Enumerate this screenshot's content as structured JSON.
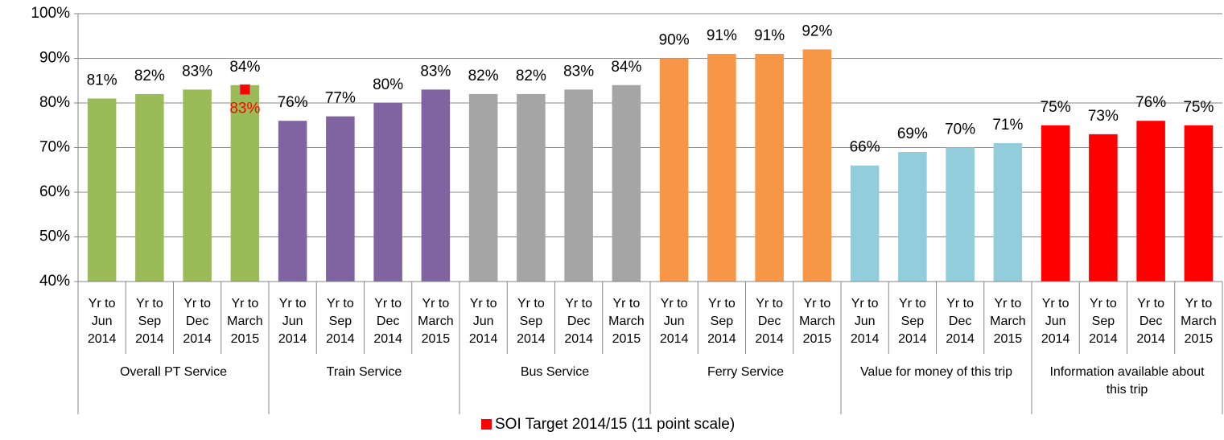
{
  "chart_data": {
    "type": "bar",
    "categories": [
      "Yr to Jun 2014",
      "Yr to Sep 2014",
      "Yr to Dec 2014",
      "Yr to March 2015",
      "Yr to Jun 2014",
      "Yr to Sep 2014",
      "Yr to Dec 2014",
      "Yr to March 2015",
      "Yr to Jun 2014",
      "Yr to Sep 2014",
      "Yr to Dec 2014",
      "Yr to March 2015",
      "Yr to Jun 2014",
      "Yr to Sep 2014",
      "Yr to Dec 2014",
      "Yr to March 2015",
      "Yr to Jun 2014",
      "Yr to Sep 2014",
      "Yr to Dec 2014",
      "Yr to March 2015",
      "Yr to Jun 2014",
      "Yr to Sep 2014",
      "Yr to Dec 2014",
      "Yr to March 2015"
    ],
    "groups": [
      {
        "label": "Overall PT Service",
        "color": "#9bbb59"
      },
      {
        "label": "Train Service",
        "color": "#8064a2"
      },
      {
        "label": "Bus Service",
        "color": "#a5a5a5"
      },
      {
        "label": "Ferry Service",
        "color": "#f79646"
      },
      {
        "label": "Value for money of this trip",
        "color": "#92cddc"
      },
      {
        "label": "Information available about this trip",
        "color": "#ff0000"
      }
    ],
    "series": [
      {
        "values": [
          81,
          82,
          83,
          84,
          76,
          77,
          80,
          83,
          82,
          82,
          83,
          84,
          90,
          91,
          91,
          92,
          66,
          69,
          70,
          71,
          75,
          73,
          76,
          75
        ],
        "value_labels": [
          "81%",
          "82%",
          "83%",
          "84%",
          "76%",
          "77%",
          "80%",
          "83%",
          "82%",
          "82%",
          "83%",
          "84%",
          "90%",
          "91%",
          "91%",
          "92%",
          "66%",
          "69%",
          "70%",
          "71%",
          "75%",
          "73%",
          "76%",
          "75%"
        ]
      },
      {
        "name": "SOI Target 2014/15 (11 point scale)",
        "color": "#ff0000",
        "values": [
          null,
          null,
          null,
          83,
          null,
          null,
          null,
          null,
          null,
          null,
          null,
          null,
          null,
          null,
          null,
          null,
          null,
          null,
          null,
          null,
          null,
          null,
          null,
          null
        ],
        "value_labels": [
          null,
          null,
          null,
          "83%",
          null,
          null,
          null,
          null,
          null,
          null,
          null,
          null,
          null,
          null,
          null,
          null,
          null,
          null,
          null,
          null,
          null,
          null,
          null,
          null
        ]
      }
    ],
    "ylim": [
      40,
      100
    ],
    "yticks": [
      {
        "value": 40,
        "label": "40%"
      },
      {
        "value": 50,
        "label": "50%"
      },
      {
        "value": 60,
        "label": "60%"
      },
      {
        "value": 70,
        "label": "70%"
      },
      {
        "value": 80,
        "label": "80%"
      },
      {
        "value": 90,
        "label": "90%"
      },
      {
        "value": 100,
        "label": "100%"
      }
    ],
    "grid": true
  }
}
